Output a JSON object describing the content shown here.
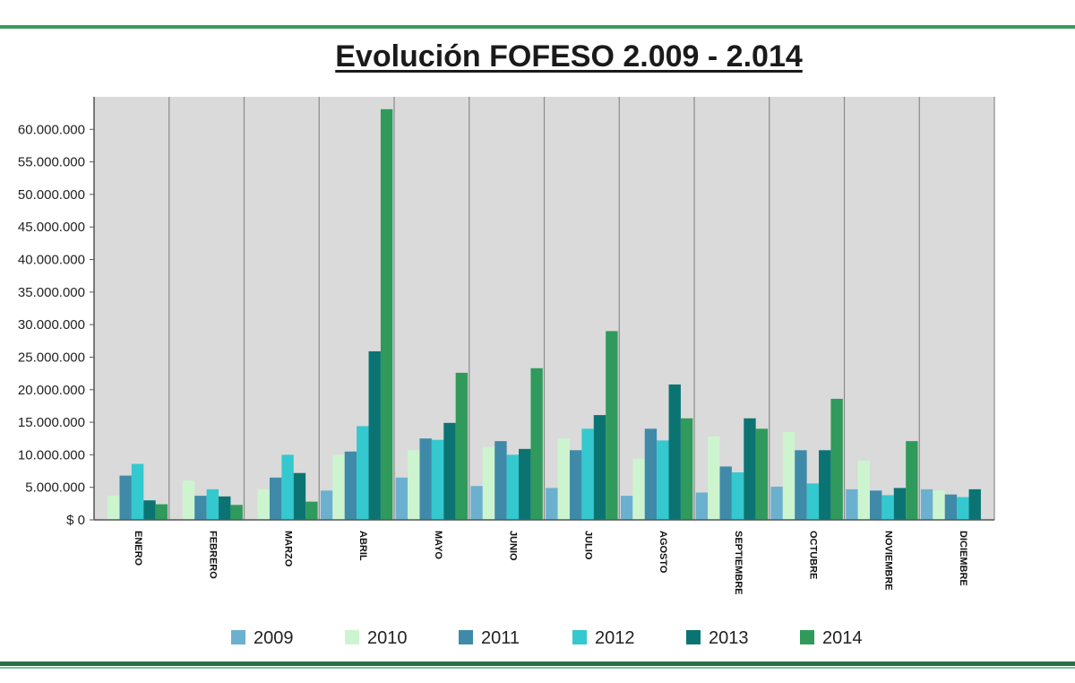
{
  "chart_data": {
    "type": "bar",
    "title": "Evolución FOFESO 2.009 - 2.014",
    "xlabel": "",
    "ylabel": "",
    "ylim": [
      0,
      65000000
    ],
    "grid": "vertical category separators",
    "legend_position": "bottom",
    "categories": [
      "ENERO",
      "FEBRERO",
      "MARZO",
      "ABRIL",
      "MAYO",
      "JUNIO",
      "JULIO",
      "AGOSTO",
      "SEPTIEMBRE",
      "OCTUBRE",
      "NOVIEMBRE",
      "DICIEMBRE"
    ],
    "y_tick_values": [
      0,
      5000000,
      10000000,
      15000000,
      20000000,
      25000000,
      30000000,
      35000000,
      40000000,
      45000000,
      50000000,
      55000000,
      60000000
    ],
    "y_tick_labels": [
      "$ 0",
      "5.000.000",
      "10.000.000",
      "15.000.000",
      "20.000.000",
      "25.000.000",
      "30.000.000",
      "35.000.000",
      "40.000.000",
      "45.000.000",
      "50.000.000",
      "55.000.000",
      "60.000.000"
    ],
    "series": [
      {
        "name": "2009",
        "color": "#6bb0cf",
        "values": [
          0,
          0,
          0,
          4500000,
          6500000,
          5200000,
          4900000,
          3700000,
          4200000,
          5100000,
          4700000,
          4700000
        ]
      },
      {
        "name": "2010",
        "color": "#ccf5cf",
        "values": [
          3700000,
          6000000,
          4700000,
          10000000,
          10700000,
          11200000,
          12500000,
          9400000,
          12800000,
          13500000,
          9100000,
          4500000
        ]
      },
      {
        "name": "2011",
        "color": "#3f8aa8",
        "values": [
          6800000,
          3700000,
          6500000,
          10500000,
          12500000,
          12100000,
          10700000,
          14000000,
          8200000,
          10700000,
          4500000,
          3900000
        ]
      },
      {
        "name": "2012",
        "color": "#34c8cf",
        "values": [
          8600000,
          4700000,
          10000000,
          14400000,
          12300000,
          10000000,
          14000000,
          12200000,
          7300000,
          5600000,
          3800000,
          3500000
        ]
      },
      {
        "name": "2013",
        "color": "#0b7473",
        "values": [
          3000000,
          3600000,
          7200000,
          25900000,
          14900000,
          10900000,
          16100000,
          20800000,
          15600000,
          10700000,
          4900000,
          4700000
        ]
      },
      {
        "name": "2014",
        "color": "#2f9a5c",
        "values": [
          2400000,
          2300000,
          2800000,
          63100000,
          22600000,
          23300000,
          29000000,
          15600000,
          14000000,
          18600000,
          12100000,
          0
        ]
      }
    ]
  }
}
